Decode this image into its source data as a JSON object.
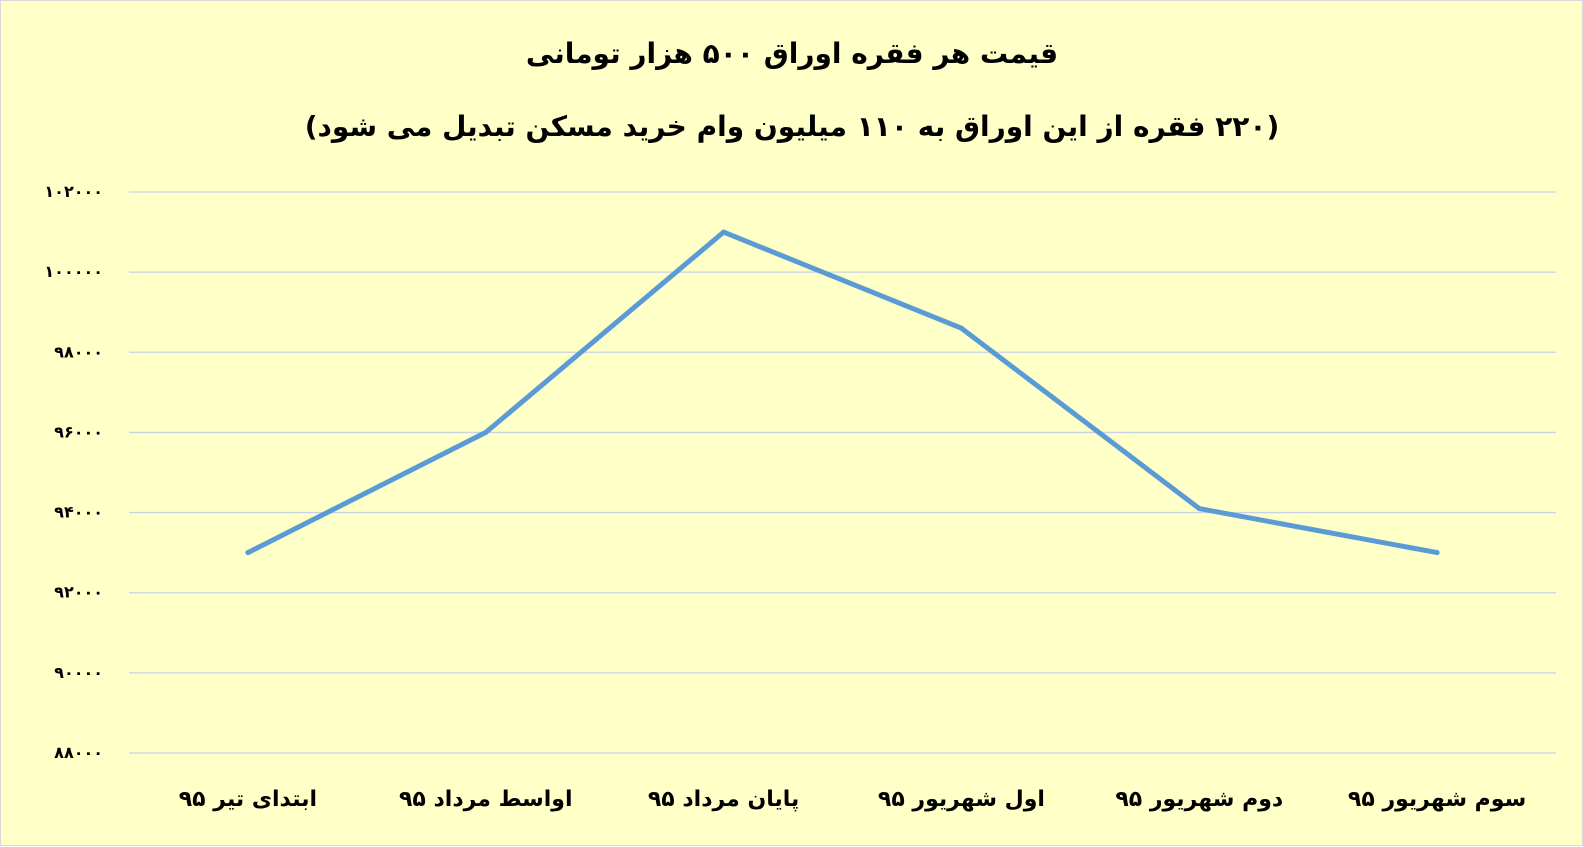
{
  "colors": {
    "background": "#ffffc8",
    "line": "#5b9bd5",
    "gridline": "#c6d3e6",
    "text": "#000000"
  },
  "chart_data": {
    "type": "line",
    "title": "قیمت هر فقره اوراق ۵۰۰ هزار تومانی",
    "subtitle": "(۲۲۰ فقره از این اوراق به ۱۱۰ میلیون وام خرید مسکن تبدیل می شود)",
    "xlabel": "",
    "ylabel": "",
    "categories": [
      "ابتدای تیر ۹۵",
      "اواسط مرداد ۹۵",
      "پایان مرداد ۹۵",
      "اول شهریور ۹۵",
      "دوم شهریور ۹۵",
      "سوم شهریور ۹۵"
    ],
    "series": [
      {
        "values": [
          93000,
          96000,
          101000,
          98600,
          94100,
          93000
        ]
      }
    ],
    "ylim": [
      88000,
      102000
    ],
    "y_ticks": [
      88000,
      90000,
      92000,
      94000,
      96000,
      98000,
      100000,
      102000
    ],
    "y_tick_labels": [
      "۸۸۰۰۰",
      "۹۰۰۰۰",
      "۹۲۰۰۰",
      "۹۴۰۰۰",
      "۹۶۰۰۰",
      "۹۸۰۰۰",
      "۱۰۰۰۰۰",
      "۱۰۲۰۰۰"
    ],
    "grid": true,
    "legend": "none"
  }
}
